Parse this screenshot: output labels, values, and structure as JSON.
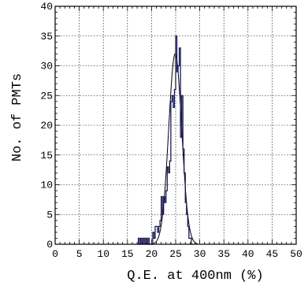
{
  "chart_data": {
    "type": "bar",
    "title": "",
    "xlabel": "Q.E. at 400nm (%)",
    "ylabel": "No. of PMTs",
    "xlim": [
      0,
      50
    ],
    "ylim": [
      0,
      40
    ],
    "x_ticks": [
      0,
      5,
      10,
      15,
      20,
      25,
      30,
      35,
      40,
      45,
      50
    ],
    "y_ticks": [
      0,
      5,
      10,
      15,
      20,
      25,
      30,
      35,
      40
    ],
    "grid": true,
    "bin_width": 0.25,
    "series": [
      {
        "style": "histogram-step",
        "color": "#1a1a55",
        "bins": [
          [
            17.0,
            0
          ],
          [
            17.25,
            1
          ],
          [
            17.5,
            0
          ],
          [
            17.75,
            1
          ],
          [
            18.0,
            0
          ],
          [
            18.25,
            1
          ],
          [
            18.5,
            0
          ],
          [
            18.75,
            1
          ],
          [
            19.0,
            0
          ],
          [
            19.25,
            1
          ],
          [
            19.5,
            0
          ],
          [
            19.75,
            0
          ],
          [
            20.0,
            0
          ],
          [
            20.25,
            2
          ],
          [
            20.5,
            1
          ],
          [
            20.75,
            3
          ],
          [
            21.0,
            3
          ],
          [
            21.25,
            2
          ],
          [
            21.5,
            3
          ],
          [
            21.75,
            4
          ],
          [
            22.0,
            8
          ],
          [
            22.25,
            5
          ],
          [
            22.5,
            8
          ],
          [
            22.75,
            7
          ],
          [
            23.0,
            9
          ],
          [
            23.25,
            13
          ],
          [
            23.5,
            12
          ],
          [
            23.75,
            14
          ],
          [
            24.0,
            24
          ],
          [
            24.25,
            25
          ],
          [
            24.5,
            23
          ],
          [
            24.75,
            26
          ],
          [
            25.0,
            35
          ],
          [
            25.25,
            29
          ],
          [
            25.5,
            30
          ],
          [
            25.75,
            33
          ],
          [
            26.0,
            18
          ],
          [
            26.25,
            25
          ],
          [
            26.5,
            16
          ],
          [
            26.75,
            12
          ],
          [
            27.0,
            7
          ],
          [
            27.25,
            5
          ],
          [
            27.5,
            3
          ],
          [
            27.75,
            1
          ],
          [
            28.0,
            1
          ],
          [
            28.25,
            0
          ]
        ]
      },
      {
        "style": "gaussian-fit",
        "color": "#000000",
        "mean": 24.9,
        "sigma": 1.35,
        "amplitude": 32,
        "range": [
          19.5,
          29.5
        ]
      }
    ]
  }
}
